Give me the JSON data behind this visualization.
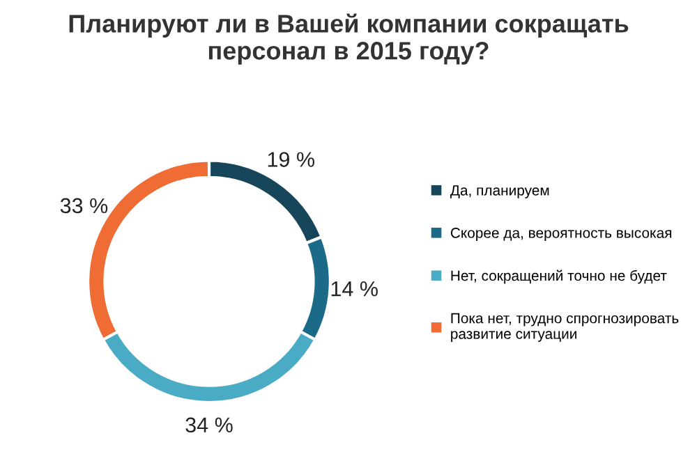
{
  "chart_data": {
    "type": "donut",
    "title": "Планируют ли в Вашей компании сокращать\nперсонал в 2015 году?",
    "categories": [
      "Да, планируем",
      "Скорее да, вероятность высокая",
      "Нет, сокращений точно не будет",
      "Пока нет, трудно спрогнозировать\nразвитие ситуации"
    ],
    "values": [
      19,
      14,
      34,
      33
    ],
    "colors": [
      "#17465a",
      "#1a6a88",
      "#4aabc5",
      "#ef6c35"
    ],
    "value_labels": [
      "19 %",
      "14 %",
      "34 %",
      "33 %"
    ],
    "legend": "right"
  }
}
